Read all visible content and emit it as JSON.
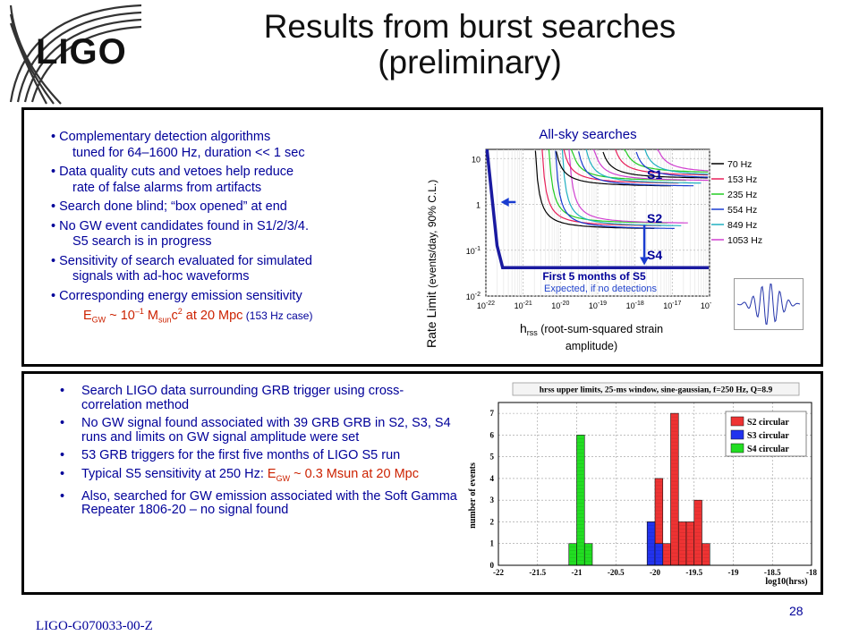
{
  "header": {
    "logo_text": "LIGO",
    "title_line1": "Results from burst searches",
    "title_line2": "(preliminary)"
  },
  "top_bullets": [
    {
      "line1": "• Complementary detection algorithms",
      "line2": "tuned for 64–1600 Hz, duration << 1 sec"
    },
    {
      "line1": "• Data quality cuts and vetoes help reduce",
      "line2": "rate of false alarms from artifacts"
    },
    {
      "line1": "• Search done blind; “box opened” at end",
      "line2": ""
    },
    {
      "line1": "• No GW event candidates found in S1/2/3/4.",
      "line2": "S5 search is in progress"
    },
    {
      "line1": "• Sensitivity of search evaluated for simulated",
      "line2": "signals with ad-hoc waveforms"
    },
    {
      "line1": "• Corresponding energy emission sensitivity",
      "line2": ""
    }
  ],
  "energy_line": {
    "e": "E",
    "gw_sub": "GW",
    "approx": " ~ 10",
    "exp": "–1",
    "m": " M",
    "sun_sub": "sun",
    "c": "c",
    "c_exp": "2",
    "at": " at 20 Mpc",
    "note": " (153 Hz case)"
  },
  "allsky_chart": {
    "title": "All-sky searches",
    "ylabel_main": "Rate Limit",
    "ylabel_note": "(events/day, 90% C.L.)",
    "xlabel_h": "h",
    "xlabel_sub": "rss",
    "xlabel_rest": " (root-sum-squared strain",
    "xlabel_line2": "amplitude)",
    "s1": "S1",
    "s2": "S2",
    "s4": "S4",
    "s5_label": "First 5 months of S5",
    "expected_label": "Expected, if no detections",
    "legend": [
      {
        "label": "70 Hz",
        "color": "#000000"
      },
      {
        "label": "153 Hz",
        "color": "#e8205a"
      },
      {
        "label": "235 Hz",
        "color": "#22cc22"
      },
      {
        "label": "554 Hz",
        "color": "#1a3cd0"
      },
      {
        "label": "849 Hz",
        "color": "#20b0c0"
      },
      {
        "label": "1053 Hz",
        "color": "#d040d0"
      }
    ],
    "yticks": [
      {
        "base": "10",
        "exp": "",
        "v": 1
      },
      {
        "base": "1",
        "exp": "",
        "v": 0
      },
      {
        "base": "10",
        "exp": "-1",
        "v": -1
      },
      {
        "base": "10",
        "exp": "-2",
        "v": -2
      }
    ],
    "xticks": [
      {
        "base": "10",
        "exp": "-22",
        "v": -22
      },
      {
        "base": "10",
        "exp": "-21",
        "v": -21
      },
      {
        "base": "10",
        "exp": "-20",
        "v": -20
      },
      {
        "base": "10",
        "exp": "-19",
        "v": -19
      },
      {
        "base": "10",
        "exp": "-18",
        "v": -18
      },
      {
        "base": "10",
        "exp": "-17",
        "v": -17
      },
      {
        "base": "10",
        "exp": "-16",
        "v": -16
      }
    ]
  },
  "bottom_bullets": [
    {
      "text": "Search LIGO data surrounding GRB trigger using cross-correlation method"
    },
    {
      "text": "No GW signal found associated with 39 GRB GRB in S2, S3, S4 runs and limits on GW signal amplitude were set"
    },
    {
      "text": "53 GRB triggers for the first five months of LIGO S5 run"
    },
    {
      "pre": "Typical S5 sensitivity at 250 Hz: ",
      "e": "E",
      "sub": "GW",
      "post": " ~ 0.3 Msun at 20 Mpc"
    },
    {
      "text": "Also, searched for GW emission associated with the Soft Gamma Repeater 1806-20 – no signal found"
    }
  ],
  "chart_data": {
    "type": "bar",
    "title": "hrss upper limits, 25-ms window, sine-gaussian, f=250 Hz, Q=8.9",
    "xlabel": "log10(hrss)",
    "ylabel": "number of events",
    "xlim": [
      -22,
      -18
    ],
    "ylim": [
      0,
      7.5
    ],
    "bin_width": 0.1,
    "x_ticks": [
      "-22",
      "-21.5",
      "-21",
      "-20.5",
      "-20",
      "-19.5",
      "-19",
      "-18.5",
      "-18"
    ],
    "y_ticks": [
      "0",
      "1",
      "2",
      "3",
      "4",
      "5",
      "6",
      "7"
    ],
    "series": [
      {
        "name": "S2 circular",
        "color": "#ee3333",
        "bins": [
          [
            -20.1,
            2
          ],
          [
            -20.0,
            4
          ],
          [
            -19.9,
            1
          ],
          [
            -19.8,
            7
          ],
          [
            -19.7,
            2
          ],
          [
            -19.6,
            2
          ],
          [
            -19.5,
            3
          ],
          [
            -19.4,
            1
          ]
        ]
      },
      {
        "name": "S3 circular",
        "color": "#2233ee",
        "bins": [
          [
            -20.1,
            2
          ],
          [
            -20.0,
            1
          ]
        ]
      },
      {
        "name": "S4 circular",
        "color": "#22dd22",
        "bins": [
          [
            -21.1,
            1
          ],
          [
            -21.0,
            6
          ],
          [
            -20.9,
            1
          ]
        ]
      }
    ]
  },
  "footer": {
    "doc_id": "LIGO-G070033-00-Z",
    "page": "28"
  }
}
